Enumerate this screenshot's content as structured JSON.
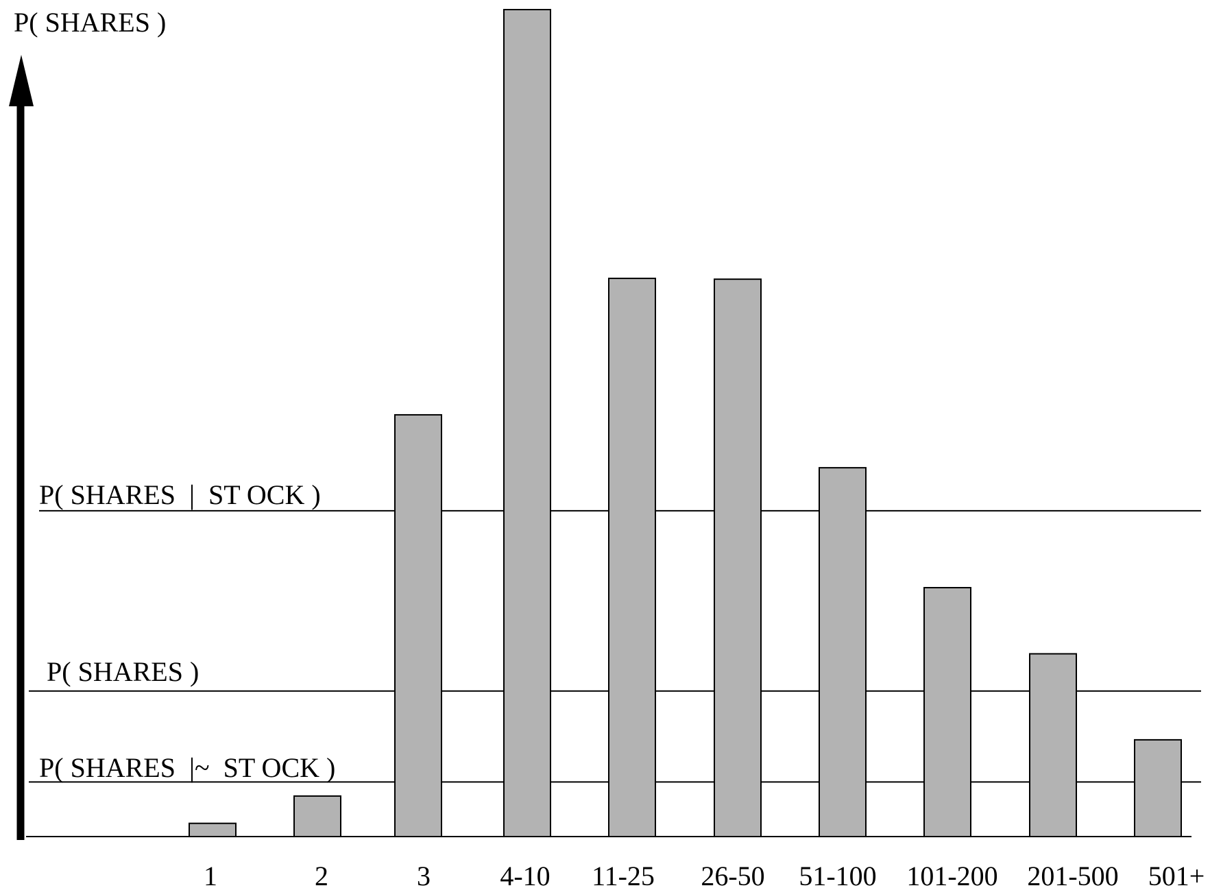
{
  "chart_data": {
    "type": "bar",
    "ylabel": "P( SHARES )",
    "xlabel": "",
    "categories": [
      "1",
      "2",
      "3",
      "4-10",
      "11-25",
      "26-50",
      "51-100",
      "101-200",
      "201-500",
      "501+"
    ],
    "values": [
      0.016,
      0.049,
      0.51,
      1.0,
      0.675,
      0.674,
      0.446,
      0.301,
      0.221,
      0.117
    ],
    "ylim": [
      0,
      1
    ],
    "reference_lines": [
      {
        "label": "P( SHARES  |  ST OCK )",
        "value": 0.394
      },
      {
        "label": "P( SHARES )",
        "value": 0.176
      },
      {
        "label": "P( SHARES  |~  ST OCK )",
        "value": 0.066
      }
    ],
    "grid": false,
    "legend": "none",
    "colors": {
      "bar": "#b3b3b3",
      "axis": "#000000"
    }
  }
}
